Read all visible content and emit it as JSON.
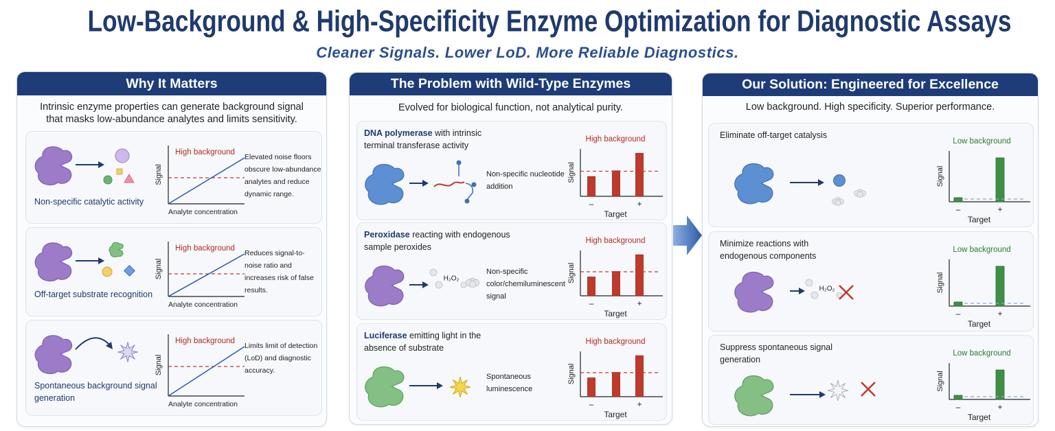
{
  "header": {
    "title": "Low-Background & High-Specificity Enzyme Optimization for Diagnostic Assays",
    "subtitle": "Cleaner Signals. Lower LoD. More Reliable Diagnostics."
  },
  "panels": [
    {
      "title": "Why It Matters",
      "intro": "Intrinsic enzyme properties can generate background signal that masks low-abundance analytes and limits sensitivity.",
      "rows": [
        {
          "label": "Non-specific catalytic activity",
          "description": "Elevated noise floors obscure low-abundance analytes and reduce dynamic range.",
          "chart": {
            "title": "High background",
            "y_label": "Signal",
            "x_label": "Analyte concentration"
          }
        },
        {
          "label": "Off-target substrate recognition",
          "description": "Reduces signal-to-noise ratio and increases risk of false results.",
          "chart": {
            "title": "High background",
            "y_label": "Signal",
            "x_label": "Analyte concentration"
          }
        },
        {
          "label": "Spontaneous background signal generation",
          "description": "Limits limit of detection (LoD) and diagnostic accuracy.",
          "chart": {
            "title": "High background",
            "y_label": "Signal",
            "x_label": "Analyte concentration"
          }
        }
      ]
    },
    {
      "title": "The Problem with Wild-Type Enzymes",
      "intro": "Evolved for biological function, not analytical purity.",
      "rows": [
        {
          "enzyme": "DNA polymerase",
          "text": "with intrinsic terminal transferase activity",
          "effect": "Non-specific nucleotide addition",
          "chart": {
            "title": "High background",
            "y_label": "Signal",
            "x_labels": [
              "–",
              "+"
            ],
            "x_label": "Target"
          }
        },
        {
          "enzyme": "Peroxidase",
          "text": "reacting with endogenous sample peroxides",
          "reagent": "H₂O₂",
          "effect": "Non-specific color/chemiluminescent signal",
          "chart": {
            "title": "High background",
            "y_label": "Signal",
            "x_labels": [
              "–",
              "+"
            ],
            "x_label": "Target"
          }
        },
        {
          "enzyme": "Luciferase",
          "text": "emitting light in the absence of substrate",
          "effect": "Spontaneous luminescence",
          "chart": {
            "title": "High background",
            "y_label": "Signal",
            "x_labels": [
              "–",
              "+"
            ],
            "x_label": "Target"
          }
        }
      ]
    },
    {
      "title": "Our Solution: Engineered for Excellence",
      "intro": "Low background. High specificity. Superior performance.",
      "rows": [
        {
          "label": "Eliminate off-target catalysis",
          "chart": {
            "title": "Low background",
            "y_label": "Signal",
            "x_labels": [
              "–",
              "+"
            ],
            "x_label": "Target"
          }
        },
        {
          "label": "Minimize reactions with endogenous components",
          "reagent": "H₂O₂",
          "chart": {
            "title": "Low background",
            "y_label": "Signal",
            "x_labels": [
              "–",
              "+"
            ],
            "x_label": "Target"
          }
        },
        {
          "label": "Suppress spontaneous signal generation",
          "chart": {
            "title": "Low background",
            "y_label": "Signal",
            "x_labels": [
              "–",
              "+"
            ],
            "x_label": "Target"
          }
        }
      ]
    }
  ]
}
